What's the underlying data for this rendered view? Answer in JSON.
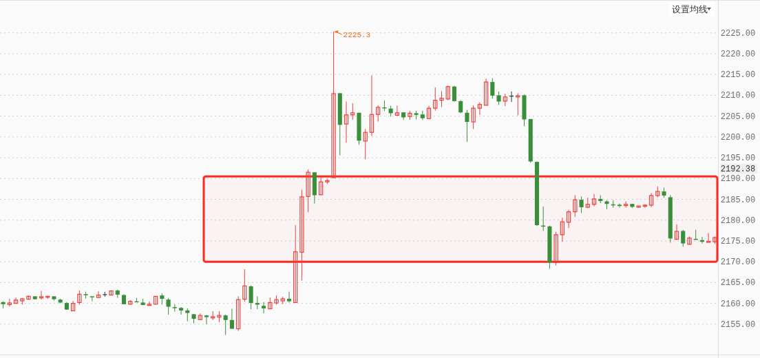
{
  "chart_data": {
    "type": "candlestick",
    "categories": [
      null,
      null,
      null,
      null,
      null,
      null,
      null,
      null,
      null,
      null,
      null,
      null,
      null,
      null,
      null,
      null,
      null,
      null,
      null,
      null,
      null,
      null,
      null,
      null,
      null,
      null,
      null,
      null,
      null,
      null,
      null,
      null,
      null,
      null,
      null,
      null,
      null,
      null,
      null,
      null,
      null,
      null,
      null,
      null,
      null,
      null,
      null,
      null,
      null,
      null,
      null,
      null,
      null,
      null,
      null,
      null,
      null,
      null,
      null,
      null,
      null,
      null,
      null,
      null,
      null,
      null,
      null,
      null,
      null,
      null,
      null,
      null,
      null,
      null,
      null,
      null,
      null,
      null,
      null,
      null,
      null,
      null,
      null,
      null,
      null,
      null,
      null,
      null,
      null,
      null,
      null,
      null,
      null,
      null,
      null,
      null,
      null,
      null,
      null,
      null,
      null,
      null,
      null,
      null,
      null,
      null,
      null,
      null,
      null,
      null,
      null,
      null,
      null
    ],
    "ohlc": [
      [
        2160.3,
        2160.5,
        2158.8,
        2159.8
      ],
      [
        2159.7,
        2161.1,
        2159.2,
        2160.1
      ],
      [
        2160.0,
        2161.4,
        2160.0,
        2160.8
      ],
      [
        2160.6,
        2161.3,
        2159.7,
        2161.1
      ],
      [
        2161.0,
        2161.9,
        2160.9,
        2161.7
      ],
      [
        2161.7,
        2161.7,
        2160.9,
        2161.0
      ],
      [
        2161.3,
        2163.0,
        2160.9,
        2161.6
      ],
      [
        2161.5,
        2161.7,
        2161.1,
        2161.7
      ],
      [
        2161.7,
        2161.7,
        2160.7,
        2161.0
      ],
      [
        2160.9,
        2161.1,
        2160.0,
        2160.2
      ],
      [
        2160.1,
        2160.3,
        2158.5,
        2158.5
      ],
      [
        2158.2,
        2160.6,
        2158.2,
        2160.0
      ],
      [
        2160.2,
        2163.1,
        2159.7,
        2162.2
      ],
      [
        2162.2,
        2162.8,
        2161.2,
        2162.0
      ],
      [
        2161.7,
        2161.7,
        2160.5,
        2161.5
      ],
      [
        2161.4,
        2162.9,
        2161.4,
        2162.0
      ],
      [
        2162.1,
        2162.8,
        2161.6,
        2162.1
      ],
      [
        2162.0,
        2163.0,
        2162.0,
        2163.0
      ],
      [
        2163.1,
        2163.3,
        2161.3,
        2162.1
      ],
      [
        2162.0,
        2162.2,
        2159.8,
        2159.8
      ],
      [
        2159.8,
        2160.8,
        2159.7,
        2160.5
      ],
      [
        2160.5,
        2161.3,
        2160.3,
        2160.4
      ],
      [
        2160.2,
        2161.1,
        2159.6,
        2159.6
      ],
      [
        2159.5,
        2160.5,
        2159.4,
        2159.8
      ],
      [
        2159.8,
        2161.7,
        2159.8,
        2161.7
      ],
      [
        2161.9,
        2162.4,
        2159.7,
        2161.1
      ],
      [
        2160.9,
        2161.3,
        2157.3,
        2159.2
      ],
      [
        2159.1,
        2159.8,
        2158.0,
        2159.0
      ],
      [
        2158.9,
        2159.1,
        2157.3,
        2158.3
      ],
      [
        2158.3,
        2158.8,
        2155.7,
        2157.7
      ],
      [
        2157.4,
        2157.4,
        2155.2,
        2156.3
      ],
      [
        2156.1,
        2157.6,
        2156.1,
        2157.1
      ],
      [
        2157.1,
        2157.2,
        2155.0,
        2156.7
      ],
      [
        2156.5,
        2158.1,
        2156.0,
        2156.8
      ],
      [
        2156.7,
        2158.1,
        2155.5,
        2157.1
      ],
      [
        2157.1,
        2157.3,
        2152.4,
        2156.0
      ],
      [
        2156.0,
        2158.7,
        2153.9,
        2153.9
      ],
      [
        2153.9,
        2161.7,
        2153.4,
        2160.9
      ],
      [
        2161.0,
        2168.2,
        2160.4,
        2164.2
      ],
      [
        2164.1,
        2164.3,
        2158.6,
        2160.1
      ],
      [
        2160.1,
        2161.7,
        2158.6,
        2159.7
      ],
      [
        2159.4,
        2160.3,
        2157.6,
        2158.8
      ],
      [
        2158.7,
        2161.4,
        2158.7,
        2160.2
      ],
      [
        2160.1,
        2161.9,
        2159.7,
        2160.9
      ],
      [
        2160.6,
        2161.6,
        2159.8,
        2161.1
      ],
      [
        2161.1,
        2162.8,
        2160.2,
        2160.5
      ],
      [
        2160.2,
        2178.8,
        2160.2,
        2172.4
      ],
      [
        2172.3,
        2187.3,
        2165.5,
        2185.6
      ],
      [
        2185.7,
        2192.2,
        2181.9,
        2191.5
      ],
      [
        2191.5,
        2191.5,
        2184.0,
        2186.0
      ],
      [
        2186.1,
        2190.4,
        2186.1,
        2189.2
      ],
      [
        2189.2,
        2189.9,
        2188.7,
        2189.5
      ],
      [
        2190.2,
        2225.3,
        2190.2,
        2210.4
      ],
      [
        2210.5,
        2210.5,
        2195.6,
        2202.9
      ],
      [
        2203.1,
        2208.5,
        2198.6,
        2205.3
      ],
      [
        2205.3,
        2208.1,
        2204.1,
        2205.8
      ],
      [
        2205.8,
        2205.8,
        2198.1,
        2199.1
      ],
      [
        2199.0,
        2201.9,
        2194.6,
        2201.1
      ],
      [
        2201.1,
        2214.8,
        2200.2,
        2205.4
      ],
      [
        2205.4,
        2207.6,
        2203.7,
        2207.1
      ],
      [
        2207.1,
        2208.8,
        2206.2,
        2206.9
      ],
      [
        2206.8,
        2207.5,
        2204.9,
        2205.7
      ],
      [
        2205.2,
        2207.5,
        2205.2,
        2205.8
      ],
      [
        2205.9,
        2205.9,
        2204.1,
        2204.7
      ],
      [
        2204.9,
        2206.3,
        2204.1,
        2205.7
      ],
      [
        2205.7,
        2206.3,
        2204.2,
        2205.3
      ],
      [
        2205.4,
        2206.3,
        2204.1,
        2204.5
      ],
      [
        2204.4,
        2207.5,
        2204.4,
        2206.9
      ],
      [
        2206.9,
        2211.9,
        2206.3,
        2208.8
      ],
      [
        2208.8,
        2211.0,
        2207.2,
        2209.3
      ],
      [
        2209.1,
        2212.3,
        2208.8,
        2212.1
      ],
      [
        2212.1,
        2212.3,
        2208.5,
        2208.6
      ],
      [
        2208.6,
        2208.8,
        2205.7,
        2205.9
      ],
      [
        2205.8,
        2206.5,
        2198.8,
        2203.6
      ],
      [
        2203.6,
        2207.6,
        2201.9,
        2206.9
      ],
      [
        2206.9,
        2208.3,
        2205.3,
        2207.8
      ],
      [
        2207.6,
        2214.0,
        2207.6,
        2213.2
      ],
      [
        2213.2,
        2214.1,
        2209.2,
        2209.9
      ],
      [
        2210.0,
        2210.9,
        2207.7,
        2208.5
      ],
      [
        2208.6,
        2210.4,
        2207.4,
        2209.6
      ],
      [
        2209.8,
        2210.9,
        2208.4,
        2209.8
      ],
      [
        2209.6,
        2210.5,
        2205.2,
        2209.9
      ],
      [
        2210.0,
        2210.2,
        2202.6,
        2204.2
      ],
      [
        2204.3,
        2204.3,
        2193.8,
        2194.1
      ],
      [
        2194.0,
        2194.1,
        2178.6,
        2178.8
      ],
      [
        2178.7,
        2183.3,
        2177.4,
        2178.6
      ],
      [
        2178.5,
        2178.7,
        2168.3,
        2169.8
      ],
      [
        2169.8,
        2177.2,
        2169.1,
        2176.5
      ],
      [
        2176.5,
        2180.6,
        2174.8,
        2179.6
      ],
      [
        2179.5,
        2182.5,
        2178.1,
        2182.0
      ],
      [
        2182.0,
        2186.0,
        2180.8,
        2184.9
      ],
      [
        2184.9,
        2185.7,
        2181.7,
        2183.1
      ],
      [
        2183.1,
        2185.4,
        2182.9,
        2183.8
      ],
      [
        2183.8,
        2186.3,
        2183.3,
        2185.1
      ],
      [
        2185.1,
        2186.0,
        2184.1,
        2184.6
      ],
      [
        2184.5,
        2184.8,
        2182.6,
        2183.9
      ],
      [
        2183.8,
        2184.8,
        2183.0,
        2183.7
      ],
      [
        2183.7,
        2184.0,
        2183.0,
        2183.4
      ],
      [
        2183.5,
        2184.5,
        2183.0,
        2183.8
      ],
      [
        2183.9,
        2183.9,
        2182.9,
        2183.2
      ],
      [
        2183.1,
        2183.4,
        2183.0,
        2183.4
      ],
      [
        2183.5,
        2183.8,
        2183.0,
        2183.6
      ],
      [
        2183.6,
        2186.5,
        2183.1,
        2185.9
      ],
      [
        2185.9,
        2188.1,
        2185.5,
        2186.9
      ],
      [
        2186.9,
        2187.8,
        2185.4,
        2185.9
      ],
      [
        2185.5,
        2186.0,
        2174.6,
        2175.6
      ],
      [
        2175.4,
        2179.0,
        2175.3,
        2177.3
      ],
      [
        2177.4,
        2177.7,
        2173.6,
        2174.4
      ],
      [
        2174.2,
        2176.1,
        2174.1,
        2175.7
      ],
      [
        2175.5,
        2177.7,
        2175.3,
        2175.3
      ],
      [
        2175.2,
        2176.0,
        2174.4,
        2174.8
      ],
      [
        2174.8,
        2176.9,
        2174.8,
        2174.9
      ],
      [
        2174.8,
        2176.1,
        2174.3,
        2175.8
      ]
    ],
    "colors": [
      "#3a8f3a",
      "#e8413e",
      "#e8413e",
      "#e8413e",
      "#e8413e",
      "#3a8f3a",
      "#e8413e",
      "#e8413e",
      "#3a8f3a",
      "#3a8f3a",
      "#3a8f3a",
      "#e8413e",
      "#e8413e",
      "#3a8f3a",
      "#3a8f3a",
      "#e8413e",
      "#333333",
      "#e8413e",
      "#3a8f3a",
      "#3a8f3a",
      "#e8413e",
      "#3a8f3a",
      "#3a8f3a",
      "#e8413e",
      "#e8413e",
      "#3a8f3a",
      "#3a8f3a",
      "#3a8f3a",
      "#3a8f3a",
      "#3a8f3a",
      "#3a8f3a",
      "#e8413e",
      "#3a8f3a",
      "#e8413e",
      "#e8413e",
      "#3a8f3a",
      "#3a8f3a",
      "#e8413e",
      "#e8413e",
      "#3a8f3a",
      "#3a8f3a",
      "#3a8f3a",
      "#e8413e",
      "#e8413e",
      "#e8413e",
      "#3a8f3a",
      "#e8413e",
      "#e8413e",
      "#e8413e",
      "#3a8f3a",
      "#e8413e",
      "#e8413e",
      "#e8413e",
      "#3a8f3a",
      "#e8413e",
      "#e8413e",
      "#3a8f3a",
      "#e8413e",
      "#e8413e",
      "#e8413e",
      "#3a8f3a",
      "#3a8f3a",
      "#e8413e",
      "#3a8f3a",
      "#e8413e",
      "#3a8f3a",
      "#3a8f3a",
      "#e8413e",
      "#e8413e",
      "#e8413e",
      "#e8413e",
      "#3a8f3a",
      "#3a8f3a",
      "#3a8f3a",
      "#e8413e",
      "#e8413e",
      "#e8413e",
      "#3a8f3a",
      "#3a8f3a",
      "#e8413e",
      "#333333",
      "#e8413e",
      "#3a8f3a",
      "#3a8f3a",
      "#3a8f3a",
      "#3a8f3a",
      "#3a8f3a",
      "#e8413e",
      "#e8413e",
      "#e8413e",
      "#e8413e",
      "#3a8f3a",
      "#e8413e",
      "#e8413e",
      "#3a8f3a",
      "#3a8f3a",
      "#3a8f3a",
      "#3a8f3a",
      "#e8413e",
      "#3a8f3a",
      "#e8413e",
      "#e8413e",
      "#e8413e",
      "#e8413e",
      "#3a8f3a",
      "#3a8f3a",
      "#e8413e",
      "#3a8f3a",
      "#e8413e",
      "#3a8f3a",
      "#3a8f3a",
      "#e8413e",
      "#e8413e"
    ],
    "ylim": [
      2147.7,
      2232.9
    ],
    "yticks": [
      {
        "value": 2155,
        "label": "2155.00"
      },
      {
        "value": 2160,
        "label": "2160.00"
      },
      {
        "value": 2165,
        "label": "2165.00"
      },
      {
        "value": 2170,
        "label": "2170.00"
      },
      {
        "value": 2175,
        "label": "2175.00"
      },
      {
        "value": 2180,
        "label": "2180.00"
      },
      {
        "value": 2185,
        "label": "2185.00"
      },
      {
        "value": 2190,
        "label": "2190.00"
      },
      {
        "value": 2195,
        "label": "2195.00"
      },
      {
        "value": 2200,
        "label": "2200.00"
      },
      {
        "value": 2205,
        "label": "2205.00"
      },
      {
        "value": 2210,
        "label": "2210.00"
      },
      {
        "value": 2215,
        "label": "2215.00"
      },
      {
        "value": 2220,
        "label": "2220.00"
      },
      {
        "value": 2225,
        "label": "2225.00"
      }
    ],
    "grid": "y",
    "tick_labels": "y",
    "bands": [
      {
        "axis": "y",
        "from": 2170,
        "to": 2190.5,
        "color": "#ff2a1f"
      }
    ],
    "annotations": [
      "设置均线",
      "2225.3",
      "2192.38"
    ]
  }
}
